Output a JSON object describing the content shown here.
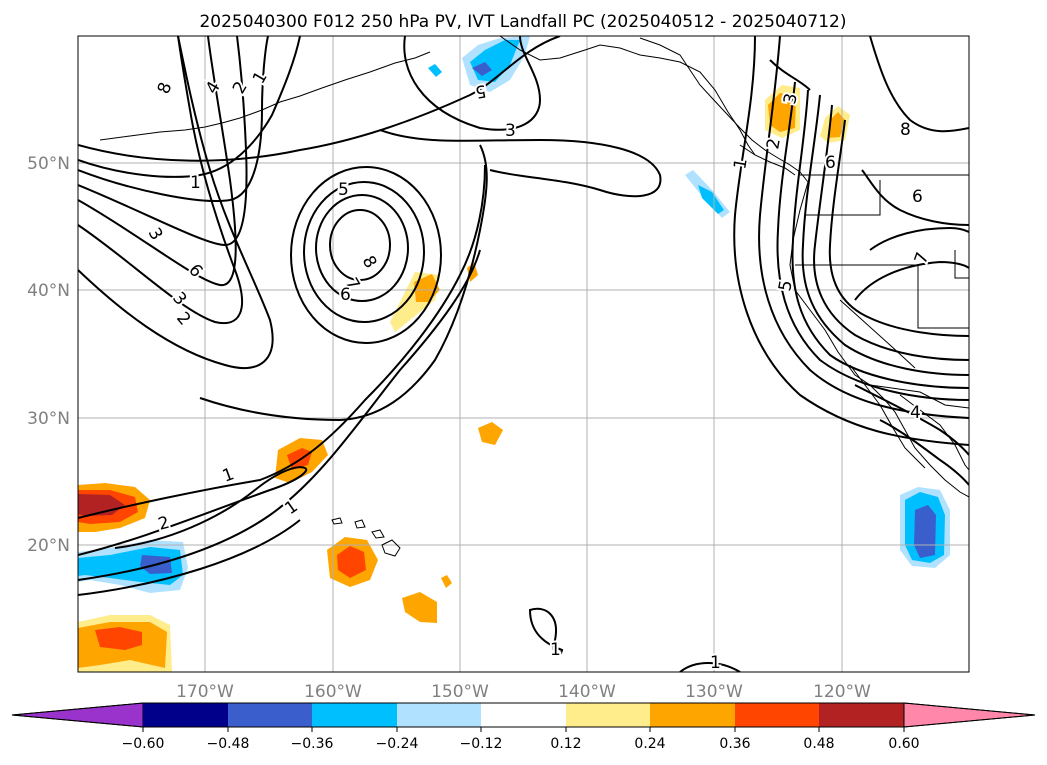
{
  "title": "2025040300 F012 250 hPa PV, IVT Landfall PC (2025040512 - 2025040712)",
  "map": {
    "lon_labels": [
      "170°W",
      "160°W",
      "150°W",
      "140°W",
      "130°W",
      "120°W"
    ],
    "lat_labels": [
      "50°N",
      "40°N",
      "30°N",
      "20°N"
    ],
    "lon_range": [
      -180,
      -110
    ],
    "lat_range": [
      10,
      60
    ],
    "gridlines": true,
    "contour_levels_labeled": [
      "1",
      "2",
      "3",
      "4",
      "5",
      "6",
      "7",
      "8"
    ]
  },
  "colorbar": {
    "ticks": [
      "−0.60",
      "−0.48",
      "−0.36",
      "−0.24",
      "−0.12",
      "0.12",
      "0.24",
      "0.36",
      "0.48",
      "0.60"
    ],
    "extend": "both",
    "colors": [
      "#9933cc",
      "#00008b",
      "#3a5fcd",
      "#00bfff",
      "#b0e2ff",
      "#ffffff",
      "#ffec8b",
      "#ffa500",
      "#ff4500",
      "#b22222",
      "#ff88aa"
    ]
  },
  "contour_labels": [
    {
      "text": "8"
    },
    {
      "text": "4"
    },
    {
      "text": "2"
    },
    {
      "text": "1"
    },
    {
      "text": "1"
    },
    {
      "text": "3"
    },
    {
      "text": "6"
    },
    {
      "text": "3"
    },
    {
      "text": "2"
    },
    {
      "text": "5"
    },
    {
      "text": "8"
    },
    {
      "text": "7"
    },
    {
      "text": "6"
    },
    {
      "text": "5"
    },
    {
      "text": "3"
    },
    {
      "text": "1"
    },
    {
      "text": "2"
    },
    {
      "text": "1"
    },
    {
      "text": "1"
    },
    {
      "text": "1"
    },
    {
      "text": "3"
    },
    {
      "text": "2"
    },
    {
      "text": "1"
    },
    {
      "text": "8"
    },
    {
      "text": "6"
    },
    {
      "text": "6"
    },
    {
      "text": "7"
    },
    {
      "text": "5"
    },
    {
      "text": "4"
    }
  ]
}
